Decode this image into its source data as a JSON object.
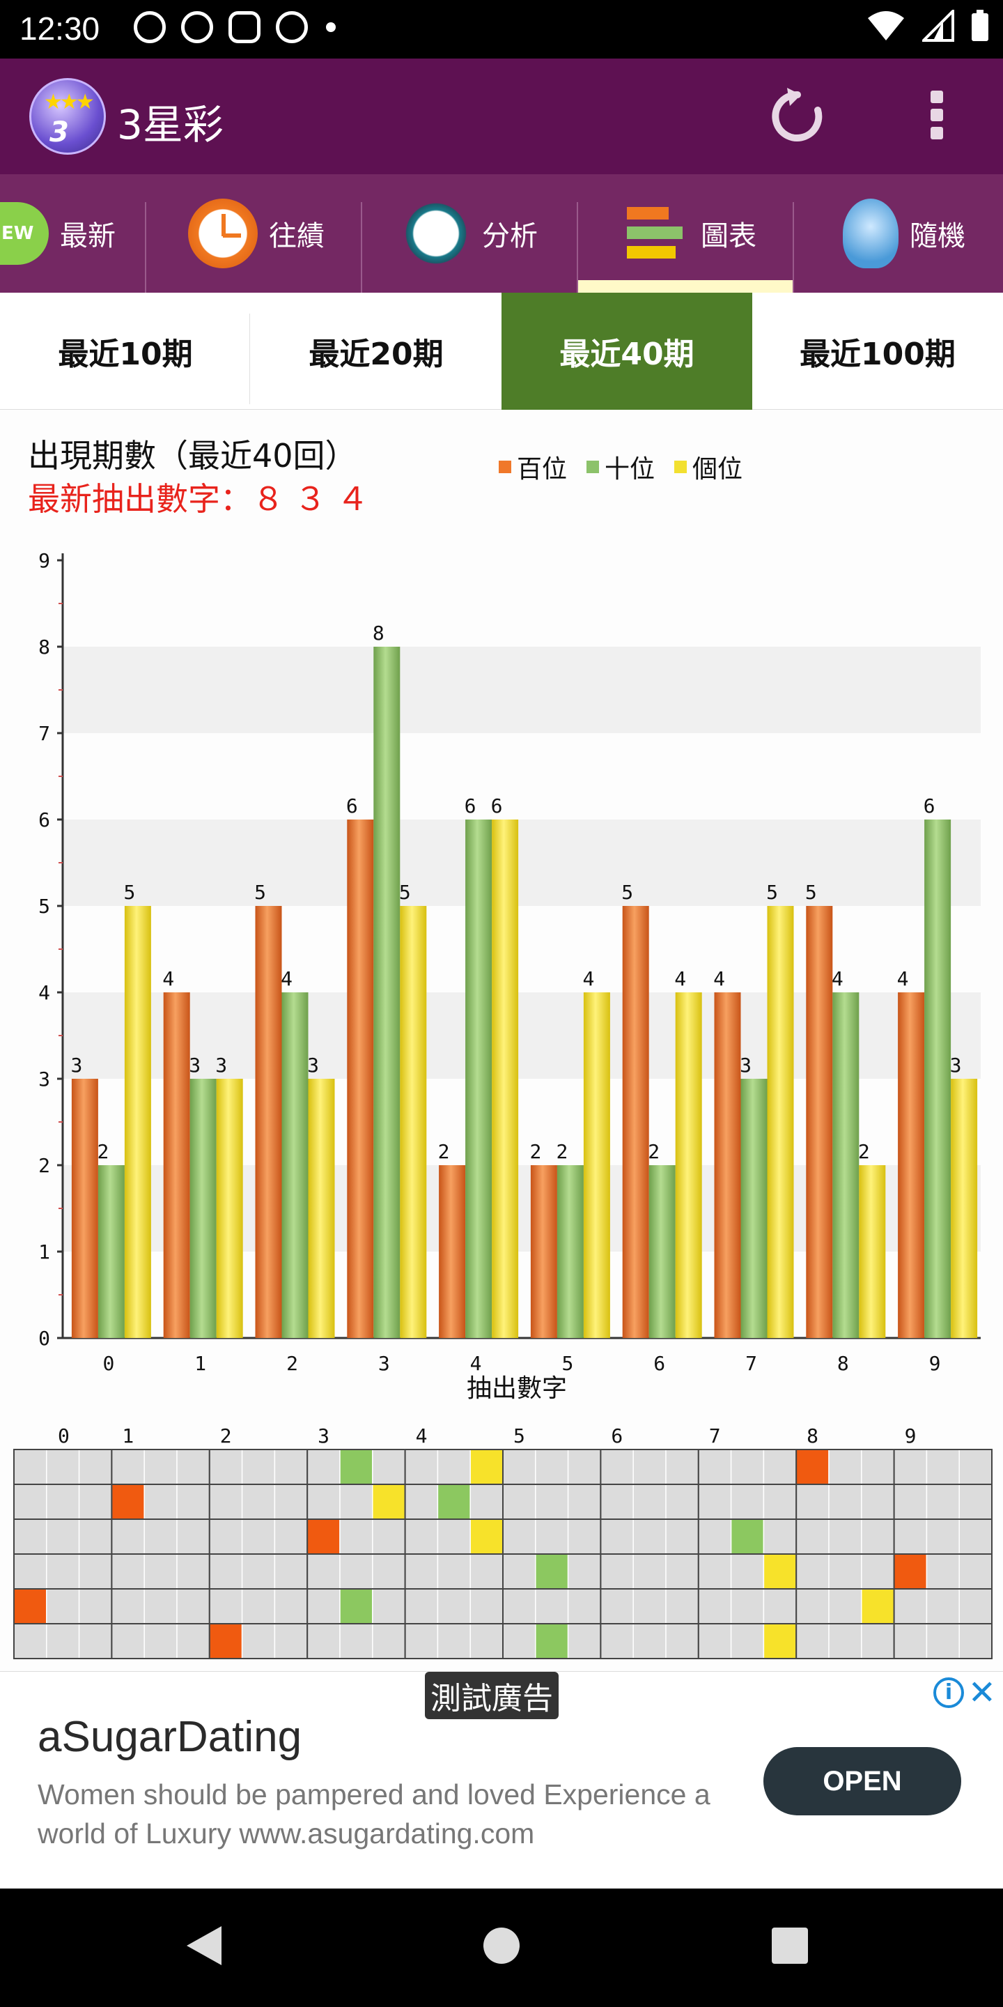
{
  "status": {
    "time": "12:30"
  },
  "app": {
    "title": "3星彩",
    "logo_num": "3",
    "logo_sub": "星彩"
  },
  "tabs": [
    {
      "label": "最新",
      "icon": "new-badge-icon"
    },
    {
      "label": "往績",
      "icon": "clock-icon"
    },
    {
      "label": "分析",
      "icon": "magnifier-chart-icon"
    },
    {
      "label": "圖表",
      "icon": "bar-chart-icon",
      "active": true
    },
    {
      "label": "隨機",
      "icon": "lightbulb-icon"
    }
  ],
  "new_badge": "EW",
  "periods": [
    {
      "label": "最近10期"
    },
    {
      "label": "最近20期"
    },
    {
      "label": "最近40期",
      "active": true
    },
    {
      "label": "最近100期"
    }
  ],
  "chart_data": {
    "type": "bar",
    "title": "出現期數（最近40回）",
    "subtitle": "最新抽出數字：８ ３ ４",
    "xlabel": "抽出數字",
    "ylabel": "",
    "ylim": [
      0,
      9
    ],
    "yticks": [
      0,
      1,
      2,
      3,
      4,
      5,
      6,
      7,
      8,
      9
    ],
    "categories": [
      "0",
      "1",
      "2",
      "3",
      "4",
      "5",
      "6",
      "7",
      "8",
      "9"
    ],
    "legend_position": "top",
    "series": [
      {
        "name": "百位",
        "color": "#f0782a",
        "values": [
          3,
          4,
          5,
          6,
          2,
          2,
          5,
          4,
          5,
          4
        ]
      },
      {
        "name": "十位",
        "color": "#8cc26a",
        "values": [
          2,
          3,
          4,
          8,
          6,
          2,
          2,
          3,
          4,
          6
        ]
      },
      {
        "name": "個位",
        "color": "#f2e030",
        "values": [
          5,
          3,
          3,
          5,
          6,
          4,
          4,
          5,
          2,
          3
        ]
      }
    ]
  },
  "grid_table": {
    "columns": [
      "0",
      "1",
      "2",
      "3",
      "4",
      "5",
      "6",
      "7",
      "8",
      "9"
    ],
    "rows": [
      [
        null,
        null,
        null,
        {
          "d": "3",
          "p": "十位"
        },
        {
          "d": "4",
          "p": "個位"
        },
        null,
        null,
        null,
        {
          "d": "8",
          "p": "百位"
        },
        null
      ],
      [
        null,
        {
          "d": "1",
          "p": "百位"
        },
        null,
        {
          "d": "3",
          "p": "個位"
        },
        {
          "d": "4",
          "p": "十位"
        },
        null,
        null,
        null,
        null,
        null
      ],
      [
        null,
        null,
        null,
        {
          "d": "3",
          "p": "百位"
        },
        {
          "d": "4",
          "p": "個位"
        },
        null,
        null,
        {
          "d": "7",
          "p": "十位"
        },
        null,
        null
      ],
      [
        null,
        null,
        null,
        null,
        null,
        {
          "d": "5",
          "p": "十位"
        },
        null,
        {
          "d": "7",
          "p": "個位"
        },
        null,
        {
          "d": "9",
          "p": "百位"
        }
      ],
      [
        {
          "d": "0",
          "p": "百位"
        },
        null,
        null,
        {
          "d": "3",
          "p": "十位"
        },
        null,
        null,
        null,
        null,
        {
          "d": "8",
          "p": "個位"
        },
        null
      ],
      [
        null,
        null,
        {
          "d": "2",
          "p": "百位"
        },
        null,
        null,
        {
          "d": "5",
          "p": "十位"
        },
        null,
        {
          "d": "7",
          "p": "個位"
        },
        null,
        null
      ]
    ]
  },
  "ad": {
    "badge": "測試廣告",
    "headline": "aSugarDating",
    "body": "Women should be pampered and loved Experience a world of Luxury www.asugardating.com",
    "cta": "OPEN"
  }
}
